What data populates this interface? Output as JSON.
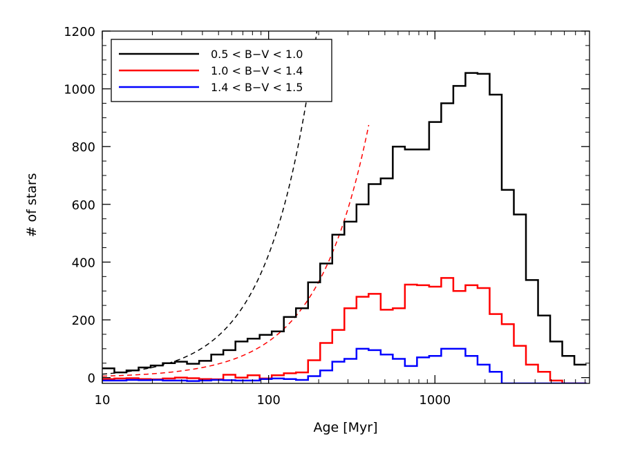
{
  "chart_data": {
    "type": "line",
    "title": "",
    "xlabel": "Age [Myr]",
    "ylabel": "# of stars",
    "x_scale": "log",
    "xlim": [
      10,
      8500
    ],
    "ylim": [
      -20,
      1200
    ],
    "x_ticks": [
      10,
      100,
      1000
    ],
    "x_tick_labels": [
      "10",
      "100",
      "1000"
    ],
    "y_ticks": [
      0,
      200,
      400,
      600,
      800,
      1000,
      1200
    ],
    "y_tick_labels": [
      "0",
      "200",
      "400",
      "600",
      "800",
      "1000",
      "1200"
    ],
    "grid": false,
    "legend_position": "top-left",
    "bin_edges": [
      10,
      11.82,
      13.98,
      16.53,
      19.54,
      23.11,
      27.33,
      32.31,
      38.21,
      45.18,
      53.42,
      63.17,
      74.69,
      88.32,
      104.43,
      123.49,
      146.02,
      172.66,
      204.16,
      241.41,
      285.45,
      337.53,
      399.11,
      471.93,
      558.03,
      659.84,
      780.22,
      922.56,
      1090.87,
      1289.89,
      1525.22,
      1803.48,
      2132.5,
      2521.55,
      2981.57,
      3525.51,
      4168.71,
      4929.23,
      5828.49,
      6891.82,
      8149.15
    ],
    "series": [
      {
        "name": "0.5 < B−V < 1.0",
        "color": "#000000",
        "values": [
          32,
          18,
          25,
          35,
          42,
          50,
          55,
          48,
          58,
          80,
          95,
          125,
          135,
          148,
          160,
          210,
          240,
          330,
          395,
          495,
          540,
          600,
          670,
          690,
          800,
          790,
          790,
          885,
          950,
          1010,
          1055,
          1052,
          980,
          650,
          565,
          338,
          215,
          125,
          75,
          45
        ]
      },
      {
        "name": "1.0 < B−V < 1.4",
        "color": "#ff0000",
        "values": [
          -5,
          -3,
          -2,
          -5,
          -6,
          -3,
          0,
          -2,
          -5,
          -6,
          10,
          0,
          8,
          -3,
          8,
          15,
          18,
          60,
          120,
          165,
          240,
          280,
          290,
          235,
          240,
          322,
          320,
          315,
          345,
          300,
          320,
          310,
          220,
          185,
          110,
          45,
          20,
          -10,
          -20,
          -20
        ]
      },
      {
        "name": "1.4 < B−V < 1.5",
        "color": "#0000ff",
        "values": [
          -10,
          -10,
          -8,
          -9,
          -8,
          -10,
          -10,
          -12,
          -10,
          -8,
          -9,
          -10,
          -10,
          -5,
          -3,
          -5,
          -8,
          5,
          25,
          55,
          65,
          100,
          95,
          80,
          65,
          40,
          70,
          75,
          100,
          100,
          75,
          45,
          20,
          -20,
          -20,
          -20,
          -20,
          -20,
          -20,
          -20
        ]
      }
    ],
    "fit_curves": [
      {
        "color": "#000000",
        "x_range": [
          10,
          600
        ],
        "A": 12,
        "k": 1.55
      },
      {
        "color": "#ff0000",
        "x_range": [
          10,
          400
        ],
        "A": 5,
        "k": 1.4
      }
    ]
  }
}
